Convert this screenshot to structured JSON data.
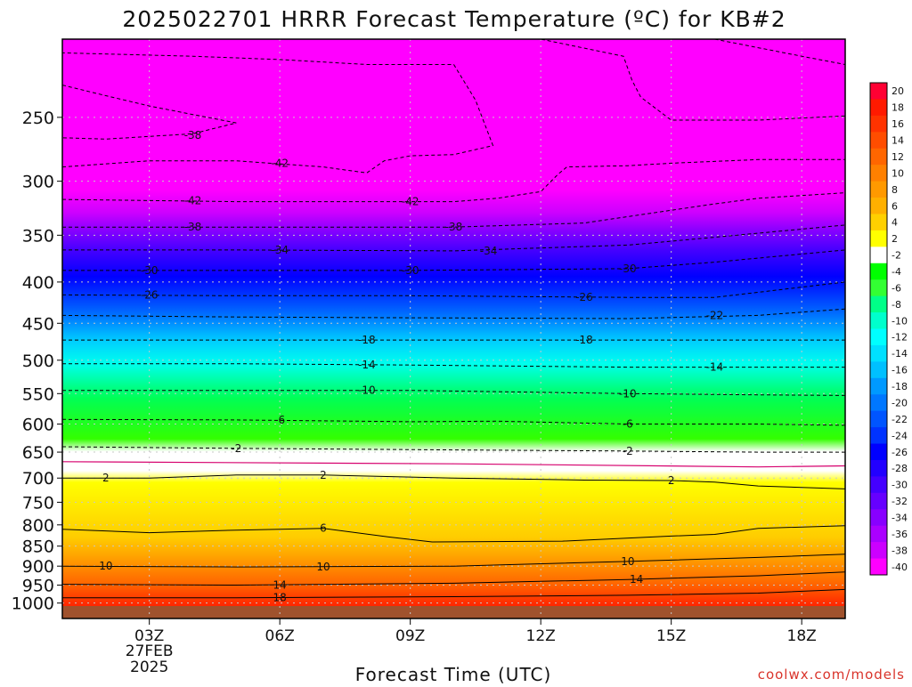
{
  "chart_data": {
    "type": "contour",
    "title": "2025022701 HRRR Forecast Temperature (ºC) for KB#2",
    "xlabel": "Forecast Time (UTC)",
    "ylabel": "",
    "y_scale": "log",
    "ylim": [
      1045,
      200
    ],
    "xlim": [
      1,
      19
    ],
    "x_ticks": [
      {
        "x": 3,
        "label": "03Z",
        "date_line1": "27FEB",
        "date_line2": "2025"
      },
      {
        "x": 6,
        "label": "06Z"
      },
      {
        "x": 9,
        "label": "09Z"
      },
      {
        "x": 12,
        "label": "12Z"
      },
      {
        "x": 15,
        "label": "15Z"
      },
      {
        "x": 18,
        "label": "18Z"
      }
    ],
    "y_ticks": [
      250,
      300,
      350,
      400,
      450,
      500,
      550,
      600,
      650,
      700,
      750,
      800,
      850,
      900,
      950,
      1000
    ],
    "colorbar_levels": [
      "20",
      "18",
      "16",
      "14",
      "12",
      "10",
      "8",
      "6",
      "4",
      "2",
      "-2",
      "-4",
      "-6",
      "-8",
      "-10",
      "-12",
      "-14",
      "-16",
      "-18",
      "-20",
      "-22",
      "-24",
      "-26",
      "-28",
      "-30",
      "-32",
      "-34",
      "-36",
      "-38",
      "-40"
    ],
    "colorbar_colors": [
      "#ff0033",
      "#ff1a00",
      "#ff3300",
      "#ff4d00",
      "#ff6600",
      "#ff8000",
      "#ff9900",
      "#ffb000",
      "#ffd000",
      "#ffff00",
      "#ffffff",
      "#00ff00",
      "#33ff33",
      "#00ff88",
      "#00ffcc",
      "#00ffff",
      "#00e0ff",
      "#00c0ff",
      "#0099ff",
      "#0077ff",
      "#0055ff",
      "#0033ff",
      "#0000ff",
      "#2200ff",
      "#4400ff",
      "#6600ff",
      "#8800ff",
      "#aa00ff",
      "#cc00ff",
      "#ff00ff"
    ],
    "isotherms": [
      {
        "temp": 18,
        "points": [
          [
            1,
            985
          ],
          [
            5,
            985
          ],
          [
            10,
            982
          ],
          [
            14,
            978
          ],
          [
            17,
            972
          ],
          [
            19,
            962
          ]
        ]
      },
      {
        "temp": 14,
        "points": [
          [
            1,
            948
          ],
          [
            5,
            950
          ],
          [
            10,
            945
          ],
          [
            14,
            935
          ],
          [
            17,
            925
          ],
          [
            19,
            915
          ]
        ]
      },
      {
        "temp": 10,
        "points": [
          [
            1,
            900
          ],
          [
            5,
            902
          ],
          [
            10,
            900
          ],
          [
            14,
            888
          ],
          [
            17,
            878
          ],
          [
            19,
            870
          ]
        ]
      },
      {
        "temp": 6,
        "points": [
          [
            1,
            810
          ],
          [
            3,
            818
          ],
          [
            5,
            812
          ],
          [
            7,
            808
          ],
          [
            8.5,
            828
          ],
          [
            9.5,
            840
          ],
          [
            12.5,
            838
          ],
          [
            15,
            826
          ],
          [
            16,
            822
          ],
          [
            17,
            808
          ],
          [
            19,
            802
          ]
        ]
      },
      {
        "temp": 2,
        "points": [
          [
            1,
            700
          ],
          [
            3,
            700
          ],
          [
            5,
            694
          ],
          [
            7,
            694
          ],
          [
            10,
            700
          ],
          [
            13,
            704
          ],
          [
            15,
            705
          ],
          [
            16,
            708
          ],
          [
            17,
            716
          ],
          [
            19,
            722
          ]
        ]
      },
      {
        "temp": -2,
        "points": [
          [
            1,
            640
          ],
          [
            5,
            643
          ],
          [
            10,
            646
          ],
          [
            14,
            648
          ],
          [
            17,
            650
          ],
          [
            19,
            650
          ]
        ]
      },
      {
        "temp": -6,
        "points": [
          [
            1,
            592
          ],
          [
            5,
            593
          ],
          [
            9,
            596
          ],
          [
            11,
            595
          ],
          [
            14,
            600
          ],
          [
            17,
            600
          ],
          [
            19,
            602
          ]
        ]
      },
      {
        "temp": -10,
        "points": [
          [
            1,
            545
          ],
          [
            5,
            545
          ],
          [
            9,
            545
          ],
          [
            14,
            550
          ],
          [
            17,
            552
          ],
          [
            19,
            553
          ]
        ]
      },
      {
        "temp": -14,
        "points": [
          [
            1,
            505
          ],
          [
            5,
            505
          ],
          [
            9,
            507
          ],
          [
            14,
            510
          ],
          [
            17,
            510
          ],
          [
            19,
            510
          ]
        ]
      },
      {
        "temp": -18,
        "points": [
          [
            1,
            472
          ],
          [
            5,
            472
          ],
          [
            9,
            472
          ],
          [
            14,
            472
          ],
          [
            17,
            472
          ],
          [
            19,
            472
          ]
        ]
      },
      {
        "temp": -22,
        "points": [
          [
            1,
            440
          ],
          [
            5,
            442
          ],
          [
            9,
            443
          ],
          [
            14,
            444
          ],
          [
            17,
            440
          ],
          [
            19,
            432
          ]
        ]
      },
      {
        "temp": -26,
        "points": [
          [
            1,
            415
          ],
          [
            5,
            416
          ],
          [
            9,
            416
          ],
          [
            14,
            418
          ],
          [
            16,
            418
          ],
          [
            19,
            400
          ]
        ]
      },
      {
        "temp": -30,
        "points": [
          [
            1,
            387
          ],
          [
            5,
            387
          ],
          [
            9,
            387
          ],
          [
            14,
            385
          ],
          [
            16,
            378
          ],
          [
            19,
            365
          ]
        ]
      },
      {
        "temp": -34,
        "points": [
          [
            1,
            365
          ],
          [
            5,
            365
          ],
          [
            10,
            366
          ],
          [
            14,
            360
          ],
          [
            16,
            352
          ],
          [
            19,
            340
          ]
        ]
      },
      {
        "temp": -38,
        "points": [
          [
            1,
            342
          ],
          [
            5,
            342
          ],
          [
            10,
            342
          ],
          [
            13,
            338
          ],
          [
            16,
            320
          ],
          [
            17,
            315
          ],
          [
            19,
            310
          ]
        ]
      },
      {
        "temp": -42,
        "points": [
          [
            1,
            316
          ],
          [
            5,
            318
          ],
          [
            10,
            318
          ],
          [
            11,
            315
          ],
          [
            12,
            309
          ],
          [
            12.4,
            294
          ],
          [
            12.6,
            288
          ],
          [
            14,
            287
          ],
          [
            15,
            285
          ],
          [
            17,
            282
          ],
          [
            19,
            282
          ]
        ]
      },
      {
        "temp": -42,
        "points": [
          [
            1,
            288
          ],
          [
            3,
            283
          ],
          [
            5,
            283
          ],
          [
            7,
            288
          ],
          [
            8,
            293
          ],
          [
            8.4,
            283
          ],
          [
            9,
            279
          ],
          [
            10,
            278
          ],
          [
            10.9,
            271
          ],
          [
            10.5,
            238
          ],
          [
            10,
            215
          ],
          [
            8,
            215
          ],
          [
            6,
            212
          ],
          [
            4,
            210
          ],
          [
            1,
            208
          ]
        ]
      },
      {
        "temp": -38,
        "points": [
          [
            1,
            228
          ],
          [
            2,
            235
          ],
          [
            3,
            242
          ],
          [
            4,
            248
          ],
          [
            5,
            254
          ],
          [
            4,
            262
          ],
          [
            2,
            266
          ],
          [
            1,
            265
          ]
        ]
      },
      {
        "temp": -42,
        "points": [
          [
            8,
            200
          ],
          [
            12,
            200
          ],
          [
            13.9,
            210
          ],
          [
            14.1,
            225
          ],
          [
            14.3,
            236
          ],
          [
            15,
            252
          ],
          [
            17,
            252
          ],
          [
            19,
            249
          ]
        ]
      },
      {
        "temp": -42,
        "points": [
          [
            16,
            200
          ],
          [
            18,
            210
          ],
          [
            19,
            215
          ]
        ]
      }
    ],
    "contour_labels": [
      {
        "text": "18",
        "x": 6,
        "p": 985
      },
      {
        "text": "14",
        "x": 6,
        "p": 950
      },
      {
        "text": "14",
        "x": 14.2,
        "p": 935
      },
      {
        "text": "10",
        "x": 2,
        "p": 900
      },
      {
        "text": "10",
        "x": 7,
        "p": 902
      },
      {
        "text": "10",
        "x": 14,
        "p": 888
      },
      {
        "text": "6",
        "x": 7,
        "p": 808
      },
      {
        "text": "2",
        "x": 2,
        "p": 700
      },
      {
        "text": "2",
        "x": 7,
        "p": 694
      },
      {
        "text": "2",
        "x": 15,
        "p": 705
      },
      {
        "text": "-2",
        "x": 5,
        "p": 643
      },
      {
        "text": "-2",
        "x": 14,
        "p": 648
      },
      {
        "text": "-6",
        "x": 6,
        "p": 593
      },
      {
        "text": "-6",
        "x": 14,
        "p": 600
      },
      {
        "text": "-10",
        "x": 8,
        "p": 545
      },
      {
        "text": "-10",
        "x": 14,
        "p": 550
      },
      {
        "text": "-14",
        "x": 8,
        "p": 507
      },
      {
        "text": "-14",
        "x": 16,
        "p": 510
      },
      {
        "text": "-18",
        "x": 8,
        "p": 472
      },
      {
        "text": "-18",
        "x": 13,
        "p": 472
      },
      {
        "text": "-22",
        "x": 16,
        "p": 440
      },
      {
        "text": "-26",
        "x": 3,
        "p": 415
      },
      {
        "text": "-26",
        "x": 13,
        "p": 418
      },
      {
        "text": "-30",
        "x": 3,
        "p": 387
      },
      {
        "text": "-30",
        "x": 9,
        "p": 387
      },
      {
        "text": "-30",
        "x": 14,
        "p": 385
      },
      {
        "text": "-34",
        "x": 6,
        "p": 365
      },
      {
        "text": "-34",
        "x": 10.8,
        "p": 366
      },
      {
        "text": "-38",
        "x": 4,
        "p": 342
      },
      {
        "text": "-38",
        "x": 10,
        "p": 342
      },
      {
        "text": "-42",
        "x": 4,
        "p": 317
      },
      {
        "text": "-42",
        "x": 9,
        "p": 318
      },
      {
        "text": "-42",
        "x": 6,
        "p": 285
      },
      {
        "text": "-38",
        "x": 4,
        "p": 263
      }
    ]
  },
  "credit": "coolwx.com/models"
}
